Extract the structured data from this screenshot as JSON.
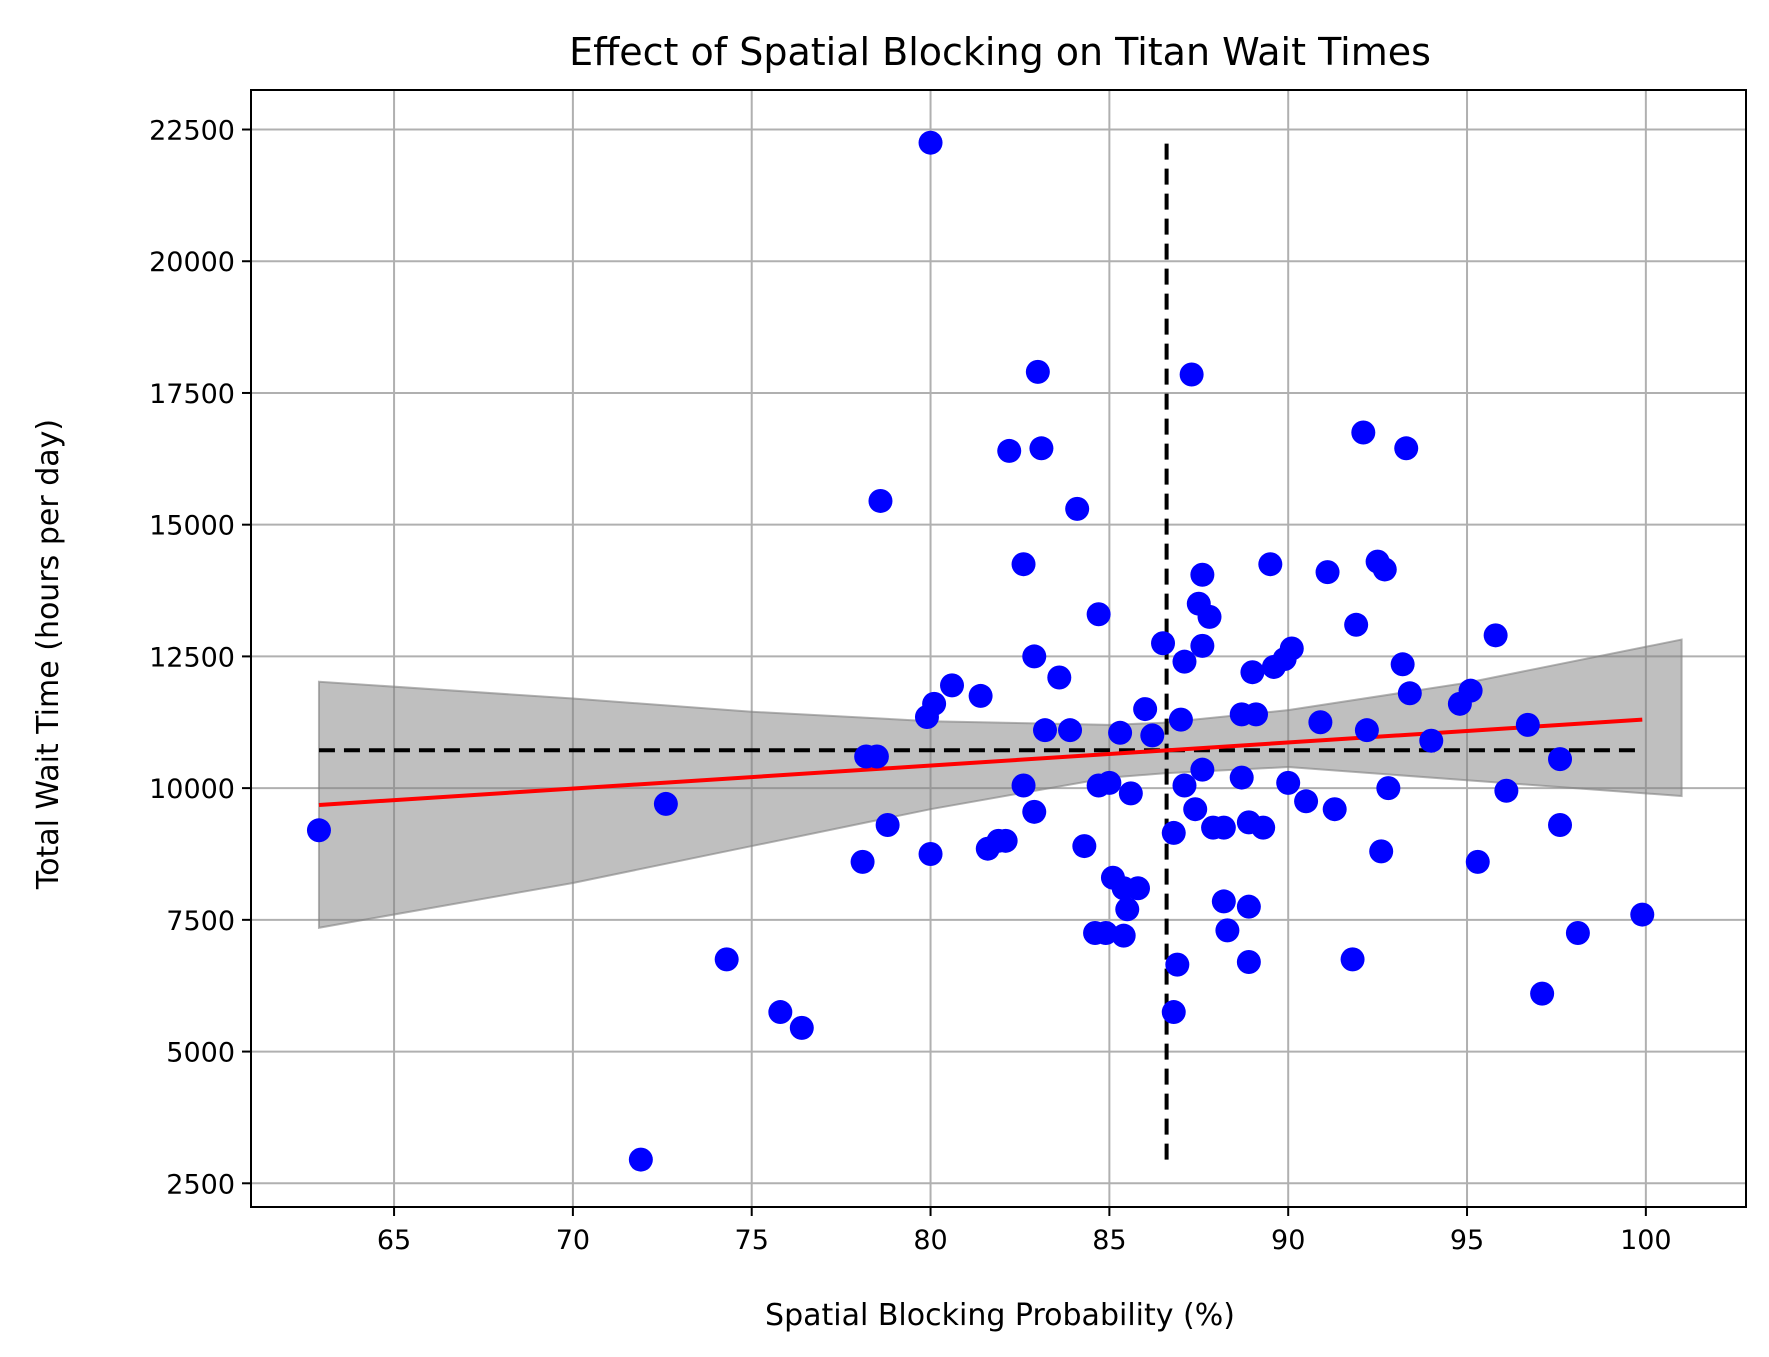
{
  "chart_data": {
    "type": "scatter",
    "title": "Effect of Spatial Blocking on Titan Wait Times",
    "xlabel": "Spatial Blocking Probability (%)",
    "ylabel": "Total Wait Time (hours per day)",
    "xlim": [
      61,
      102.8
    ],
    "ylim": [
      2050,
      23250
    ],
    "xticks": [
      65,
      70,
      75,
      80,
      85,
      90,
      95,
      100
    ],
    "yticks": [
      2500,
      5000,
      7500,
      10000,
      12500,
      15000,
      17500,
      20000,
      22500
    ],
    "grid": true,
    "colors": {
      "points": "#0000ff",
      "fit_line": "#ff0000",
      "confidence_band": "#808080",
      "mean_lines": "#000000",
      "grid": "#b0b0b0"
    },
    "points": {
      "x": [
        62.9,
        72.6,
        71.9,
        74.3,
        75.8,
        76.4,
        78.1,
        78.2,
        78.5,
        78.6,
        78.8,
        79.9,
        80.0,
        80.0,
        80.1,
        80.6,
        81.4,
        81.6,
        81.9,
        82.1,
        82.2,
        82.6,
        82.6,
        82.9,
        82.9,
        83.0,
        83.1,
        83.2,
        83.6,
        83.9,
        84.1,
        84.3,
        84.6,
        84.7,
        84.7,
        84.9,
        85.0,
        85.1,
        85.3,
        85.4,
        85.4,
        85.5,
        85.6,
        85.8,
        86.0,
        86.2,
        86.5,
        86.8,
        86.8,
        86.9,
        87.0,
        87.1,
        87.1,
        87.3,
        87.4,
        87.5,
        87.6,
        87.6,
        87.6,
        87.8,
        87.9,
        88.2,
        88.2,
        88.3,
        88.7,
        88.7,
        88.9,
        88.9,
        88.9,
        89.0,
        89.1,
        89.3,
        89.5,
        89.6,
        89.9,
        90.0,
        90.1,
        90.5,
        90.9,
        91.1,
        91.3,
        91.8,
        91.9,
        92.1,
        92.2,
        92.5,
        92.6,
        92.7,
        92.8,
        93.2,
        93.3,
        93.4,
        94.0,
        94.8,
        95.1,
        95.3,
        95.8,
        96.1,
        96.7,
        97.1,
        97.6,
        97.6,
        98.1,
        99.9
      ],
      "y": [
        9200,
        9700,
        2950,
        6750,
        5750,
        5450,
        8600,
        10600,
        10600,
        15450,
        9300,
        11350,
        8750,
        22250,
        11600,
        11950,
        11750,
        8850,
        9000,
        9000,
        16400,
        10050,
        14250,
        9550,
        12500,
        17900,
        16450,
        11100,
        12100,
        11100,
        15300,
        8900,
        7250,
        13300,
        10050,
        7250,
        10100,
        8300,
        11050,
        8100,
        7200,
        7700,
        9900,
        8100,
        11500,
        11000,
        12750,
        5750,
        9150,
        6650,
        11300,
        10050,
        12400,
        17850,
        9600,
        13500,
        10350,
        12700,
        14050,
        13250,
        9250,
        7850,
        9250,
        7300,
        10200,
        11400,
        9350,
        6700,
        7750,
        12200,
        11400,
        9250,
        14250,
        12300,
        12450,
        10100,
        12650,
        9750,
        11250,
        14100,
        9600,
        6750,
        13100,
        16750,
        11100,
        14300,
        8800,
        14150,
        10000,
        12350,
        16450,
        11800,
        10900,
        11600,
        11850,
        8600,
        12900,
        9950,
        11200,
        6100,
        10550,
        9300,
        7250,
        7600
      ]
    },
    "regression_line": {
      "x": [
        62.9,
        99.9
      ],
      "y": [
        9680,
        11300
      ]
    },
    "confidence_band": {
      "x": [
        62.9,
        70,
        75,
        80,
        85,
        86.5,
        90,
        95,
        101
      ],
      "upper": [
        12020,
        11700,
        11450,
        11270,
        11200,
        11240,
        11480,
        12000,
        12820
      ],
      "lower": [
        7350,
        8200,
        8900,
        9600,
        10200,
        10280,
        10400,
        10150,
        9850
      ]
    },
    "mean_x_line": {
      "x": 86.6,
      "y": [
        2950,
        22250
      ]
    },
    "mean_y_line": {
      "y": 10720,
      "x": [
        62.9,
        99.9
      ]
    }
  }
}
